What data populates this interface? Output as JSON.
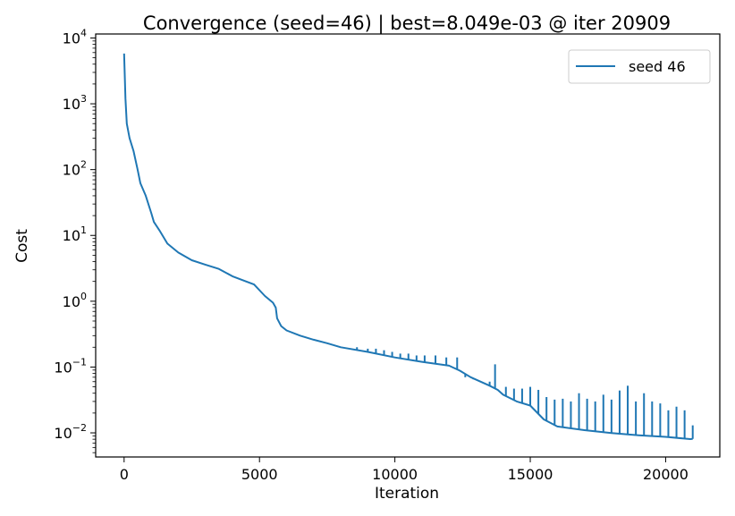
{
  "chart_data": {
    "type": "line",
    "title": "Convergence (seed=46) | best=8.049e-03 @ iter 20909",
    "xlabel": "Iteration",
    "ylabel": "Cost",
    "yscale": "log",
    "xlim": [
      -1050,
      22000
    ],
    "ylim": [
      0.0043,
      11500
    ],
    "grid": false,
    "legend": "top-right",
    "x_ticks": [
      0,
      5000,
      10000,
      15000,
      20000
    ],
    "x_tick_labels": [
      "0",
      "5000",
      "10000",
      "15000",
      "20000"
    ],
    "y_ticks": [
      0.01,
      0.1,
      1,
      10,
      100,
      1000,
      10000
    ],
    "y_tick_labels": [
      {
        "base": "10",
        "exp": "−2"
      },
      {
        "base": "10",
        "exp": "−1"
      },
      {
        "base": "10",
        "exp": "0"
      },
      {
        "base": "10",
        "exp": "1"
      },
      {
        "base": "10",
        "exp": "2"
      },
      {
        "base": "10",
        "exp": "3"
      },
      {
        "base": "10",
        "exp": "4"
      }
    ],
    "series": [
      {
        "name": "seed 46",
        "color": "#1f77b4",
        "points": [
          [
            0,
            5800
          ],
          [
            50,
            1200
          ],
          [
            100,
            500
          ],
          [
            200,
            300
          ],
          [
            350,
            190
          ],
          [
            500,
            100
          ],
          [
            600,
            62
          ],
          [
            800,
            40
          ],
          [
            1000,
            22
          ],
          [
            1100,
            16
          ],
          [
            1300,
            12
          ],
          [
            1600,
            7.5
          ],
          [
            2000,
            5.5
          ],
          [
            2500,
            4.2
          ],
          [
            3000,
            3.6
          ],
          [
            3500,
            3.1
          ],
          [
            4000,
            2.4
          ],
          [
            4500,
            2.0
          ],
          [
            4800,
            1.8
          ],
          [
            5200,
            1.2
          ],
          [
            5500,
            0.95
          ],
          [
            5600,
            0.8
          ],
          [
            5650,
            0.55
          ],
          [
            5800,
            0.42
          ],
          [
            6000,
            0.36
          ],
          [
            6500,
            0.3
          ],
          [
            7000,
            0.26
          ],
          [
            7500,
            0.23
          ],
          [
            8000,
            0.2
          ],
          [
            9000,
            0.17
          ],
          [
            10000,
            0.14
          ],
          [
            11000,
            0.12
          ],
          [
            12000,
            0.105
          ],
          [
            12400,
            0.088
          ],
          [
            12800,
            0.07
          ],
          [
            13500,
            0.052
          ],
          [
            13800,
            0.045
          ],
          [
            14000,
            0.038
          ],
          [
            14500,
            0.03
          ],
          [
            15000,
            0.026
          ],
          [
            15500,
            0.016
          ],
          [
            16000,
            0.0125
          ],
          [
            17000,
            0.011
          ],
          [
            18000,
            0.0099
          ],
          [
            19000,
            0.0092
          ],
          [
            20000,
            0.0087
          ],
          [
            20909,
            0.008049
          ],
          [
            21000,
            0.0081
          ]
        ],
        "spikes": [
          [
            8600,
            0.2
          ],
          [
            9000,
            0.19
          ],
          [
            9300,
            0.19
          ],
          [
            9600,
            0.18
          ],
          [
            9900,
            0.17
          ],
          [
            10200,
            0.16
          ],
          [
            10500,
            0.16
          ],
          [
            10800,
            0.15
          ],
          [
            11100,
            0.15
          ],
          [
            11500,
            0.15
          ],
          [
            11900,
            0.14
          ],
          [
            12300,
            0.14
          ],
          [
            12600,
            0.07
          ],
          [
            12900,
            0.065
          ],
          [
            13200,
            0.06
          ],
          [
            13500,
            0.06
          ],
          [
            13700,
            0.11
          ],
          [
            14100,
            0.05
          ],
          [
            14400,
            0.047
          ],
          [
            14700,
            0.047
          ],
          [
            15000,
            0.05
          ],
          [
            15300,
            0.045
          ],
          [
            15600,
            0.035
          ],
          [
            15900,
            0.032
          ],
          [
            16200,
            0.033
          ],
          [
            16500,
            0.03
          ],
          [
            16800,
            0.04
          ],
          [
            17100,
            0.033
          ],
          [
            17400,
            0.03
          ],
          [
            17700,
            0.038
          ],
          [
            18000,
            0.032
          ],
          [
            18300,
            0.044
          ],
          [
            18600,
            0.052
          ],
          [
            18900,
            0.03
          ],
          [
            19200,
            0.04
          ],
          [
            19500,
            0.03
          ],
          [
            19800,
            0.028
          ],
          [
            20100,
            0.022
          ],
          [
            20400,
            0.025
          ],
          [
            20700,
            0.022
          ],
          [
            21000,
            0.013
          ]
        ]
      }
    ]
  }
}
